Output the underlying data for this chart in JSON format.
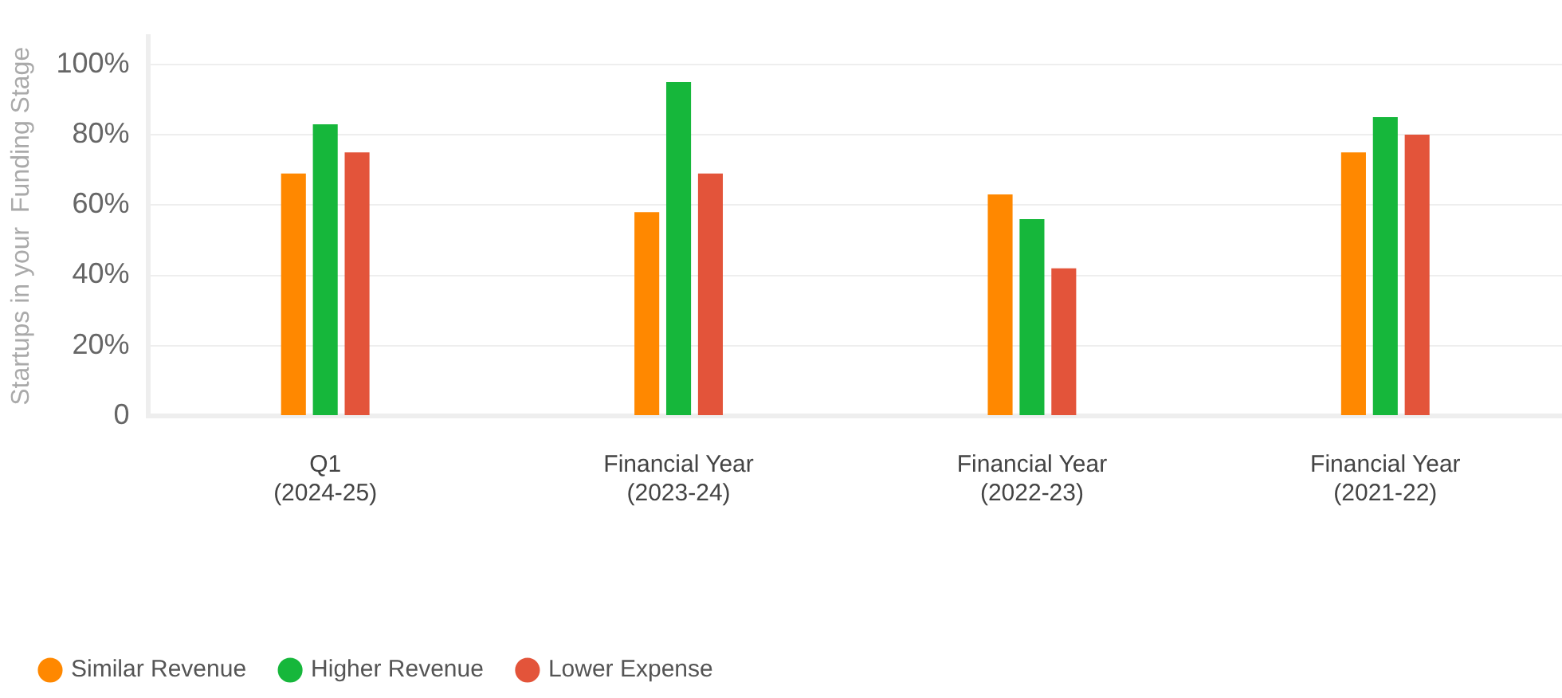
{
  "chart_data": {
    "type": "bar",
    "ylabel": "Startups in your  Funding Stage",
    "categories": [
      "Q1 (2024-25)",
      "Financial Year (2023-24)",
      "Financial Year (2022-23)",
      "Financial Year (2021-22)"
    ],
    "series": [
      {
        "name": "Similar Revenue",
        "color": "#ff8800",
        "values": [
          69,
          58,
          63,
          75
        ]
      },
      {
        "name": "Higher Revenue",
        "color": "#16b73b",
        "values": [
          83,
          95,
          56,
          85
        ]
      },
      {
        "name": "Lower Expense",
        "color": "#e3543a",
        "values": [
          75,
          69,
          42,
          80
        ]
      }
    ],
    "ylim": [
      0,
      108
    ],
    "yticks": [
      0,
      {
        "value": 20,
        "label": "20%"
      },
      {
        "value": 40,
        "label": "40%"
      },
      {
        "value": 60,
        "label": "60%"
      },
      {
        "value": 80,
        "label": "80%"
      },
      {
        "value": 100,
        "label": "100%"
      }
    ],
    "grid": "y",
    "legend": "bottom left"
  }
}
